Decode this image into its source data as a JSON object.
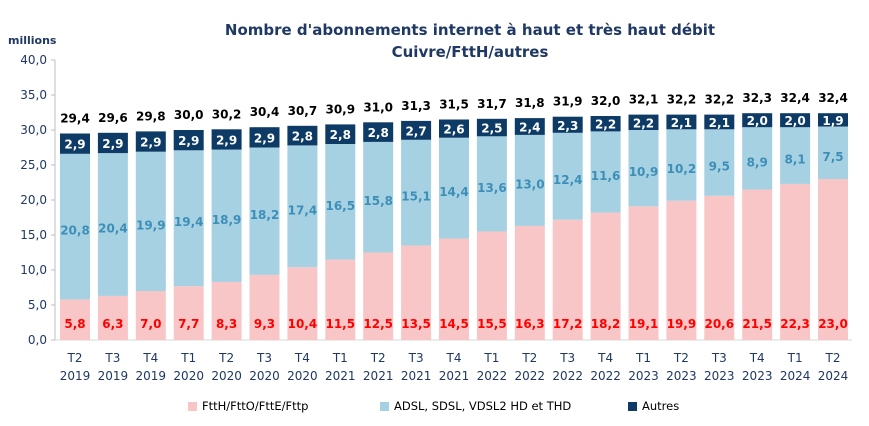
{
  "chart_data": {
    "type": "bar",
    "stacked": true,
    "title": "Nombre d'abonnements internet à haut et très haut débit",
    "subtitle": "Cuivre/FttH/autres",
    "ylabel": "millions",
    "ylim": [
      0,
      40
    ],
    "yticks": [
      "0,0",
      "5,0",
      "10,0",
      "15,0",
      "20,0",
      "25,0",
      "30,0",
      "35,0",
      "40,0"
    ],
    "grid": false,
    "legend_position": "bottom",
    "categories": [
      [
        "T2",
        "2019"
      ],
      [
        "T3",
        "2019"
      ],
      [
        "T4",
        "2019"
      ],
      [
        "T1",
        "2020"
      ],
      [
        "T2",
        "2020"
      ],
      [
        "T3",
        "2020"
      ],
      [
        "T4",
        "2020"
      ],
      [
        "T1",
        "2021"
      ],
      [
        "T2",
        "2021"
      ],
      [
        "T3",
        "2021"
      ],
      [
        "T4",
        "2021"
      ],
      [
        "T1",
        "2022"
      ],
      [
        "T2",
        "2022"
      ],
      [
        "T3",
        "2022"
      ],
      [
        "T4",
        "2022"
      ],
      [
        "T1",
        "2023"
      ],
      [
        "T2",
        "2023"
      ],
      [
        "T3",
        "2023"
      ],
      [
        "T4",
        "2023"
      ],
      [
        "T1",
        "2024"
      ],
      [
        "T2",
        "2024"
      ]
    ],
    "series": [
      {
        "name": "FttH/FttO/FttE/Fttp",
        "color": "#f8c6c6",
        "label_color": "#ff0000",
        "values": [
          5.8,
          6.3,
          7.0,
          7.7,
          8.3,
          9.3,
          10.4,
          11.5,
          12.5,
          13.5,
          14.5,
          15.5,
          16.3,
          17.2,
          18.2,
          19.1,
          19.9,
          20.6,
          21.5,
          22.3,
          23.0
        ]
      },
      {
        "name": "ADSL, SDSL, VDSL2 HD et THD",
        "color": "#a6d1e2",
        "label_color": "#3d8fb8",
        "values": [
          20.8,
          20.4,
          19.9,
          19.4,
          18.9,
          18.2,
          17.4,
          16.5,
          15.8,
          15.1,
          14.4,
          13.6,
          13.0,
          12.4,
          11.6,
          10.9,
          10.2,
          9.5,
          8.9,
          8.1,
          7.5
        ]
      },
      {
        "name": "Autres",
        "color": "#0d3b66",
        "label_color": "#ffffff",
        "values": [
          2.9,
          2.9,
          2.9,
          2.9,
          2.9,
          2.9,
          2.8,
          2.8,
          2.8,
          2.7,
          2.6,
          2.5,
          2.4,
          2.3,
          2.2,
          2.2,
          2.1,
          2.1,
          2.0,
          2.0,
          1.9
        ]
      }
    ],
    "totals": [
      29.4,
      29.6,
      29.8,
      30.0,
      30.2,
      30.4,
      30.7,
      30.9,
      31.0,
      31.3,
      31.5,
      31.7,
      31.8,
      31.9,
      32.0,
      32.1,
      32.2,
      32.2,
      32.3,
      32.4,
      32.4
    ]
  }
}
